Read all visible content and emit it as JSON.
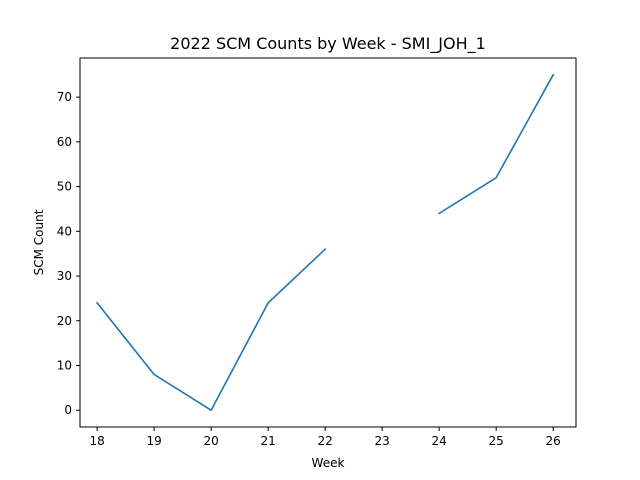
{
  "chart_data": {
    "type": "line",
    "title": "2022 SCM Counts by Week - SMI_JOH_1",
    "xlabel": "Week",
    "ylabel": "SCM Count",
    "x": [
      18,
      19,
      20,
      21,
      22,
      23,
      24,
      25,
      26
    ],
    "series": [
      {
        "values": [
          24,
          8,
          0,
          24,
          36,
          null,
          44,
          52,
          75
        ],
        "color": "#1f77b4"
      }
    ],
    "xlim": [
      17.7,
      26.4
    ],
    "ylim": [
      -3.75,
      78.75
    ],
    "xticks": [
      18,
      19,
      20,
      21,
      22,
      23,
      24,
      25,
      26
    ],
    "yticks": [
      0,
      10,
      20,
      30,
      40,
      50,
      60,
      70
    ],
    "grid": false
  }
}
